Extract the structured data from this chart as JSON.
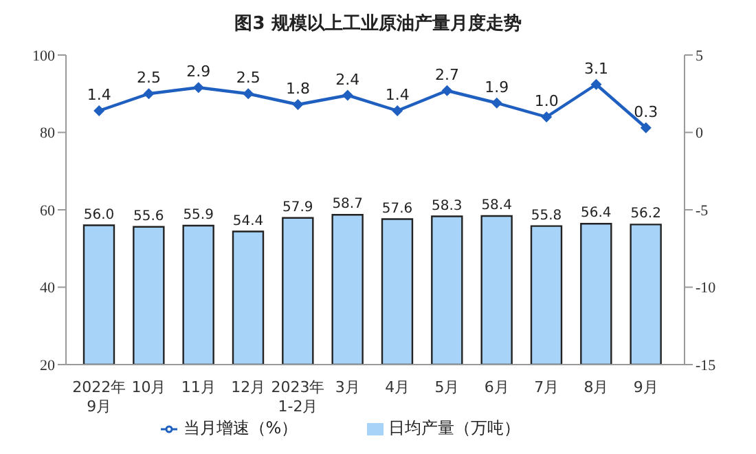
{
  "chart_data": {
    "type": "bar",
    "title": "图3  规模以上工业原油产量月度走势",
    "categories": [
      "2022年\n9月",
      "10月",
      "11月",
      "12月",
      "2023年\n1-2月",
      "3月",
      "4月",
      "5月",
      "6月",
      "7月",
      "8月",
      "9月"
    ],
    "series": [
      {
        "name": "日均产量（万吨）",
        "color": "#a6d3f7",
        "values": [
          56.0,
          55.6,
          55.9,
          54.4,
          57.9,
          58.7,
          57.6,
          58.3,
          58.4,
          55.8,
          56.4,
          56.2
        ],
        "value_labels": [
          "56.0",
          "55.6",
          "55.9",
          "54.4",
          "57.9",
          "58.7",
          "57.6",
          "58.3",
          "58.4",
          "55.8",
          "56.4",
          "56.2"
        ]
      },
      {
        "name": "当月增速（%）",
        "type": "line",
        "axis": "y2",
        "color": "#1f5fbf",
        "marker": "diamond",
        "values": [
          1.4,
          2.5,
          2.9,
          2.5,
          1.8,
          2.4,
          1.4,
          2.7,
          1.9,
          1.0,
          3.1,
          0.3
        ],
        "value_labels": [
          "1.4",
          "2.5",
          "2.9",
          "2.5",
          "1.8",
          "2.4",
          "1.4",
          "2.7",
          "1.9",
          "1.0",
          "3.1",
          "0.3"
        ]
      }
    ],
    "ylim": [
      20,
      100
    ],
    "yticks": [
      20,
      40,
      60,
      80,
      100
    ],
    "y2lim": [
      -15,
      5
    ],
    "y2ticks": [
      -15,
      -10,
      -5,
      0,
      5
    ],
    "legend": "bottom",
    "grid": false
  }
}
